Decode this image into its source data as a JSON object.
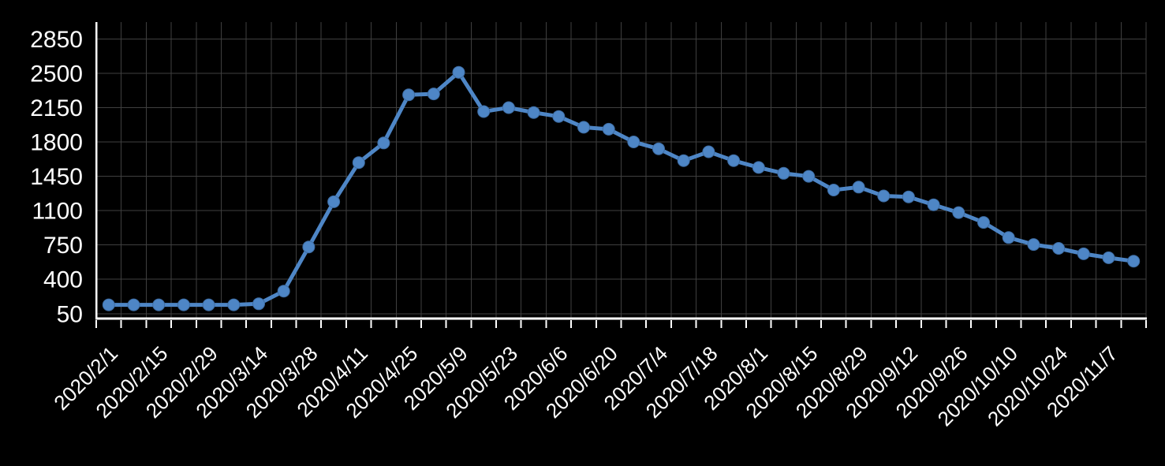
{
  "chart_data": {
    "type": "line",
    "title": "",
    "xlabel": "",
    "ylabel": "",
    "x": [
      "2020/2/1",
      "2020/2/8",
      "2020/2/15",
      "2020/2/22",
      "2020/2/29",
      "2020/3/7",
      "2020/3/14",
      "2020/3/21",
      "2020/3/28",
      "2020/4/4",
      "2020/4/11",
      "2020/4/18",
      "2020/4/25",
      "2020/5/2",
      "2020/5/9",
      "2020/5/16",
      "2020/5/23",
      "2020/5/30",
      "2020/6/6",
      "2020/6/13",
      "2020/6/20",
      "2020/6/27",
      "2020/7/4",
      "2020/7/11",
      "2020/7/18",
      "2020/7/25",
      "2020/8/1",
      "2020/8/8",
      "2020/8/15",
      "2020/8/22",
      "2020/8/29",
      "2020/9/5",
      "2020/9/12",
      "2020/9/19",
      "2020/9/26",
      "2020/10/3",
      "2020/10/10",
      "2020/10/17",
      "2020/10/24",
      "2020/10/31",
      "2020/11/7",
      "2020/11/14"
    ],
    "values": [
      140,
      140,
      140,
      140,
      140,
      140,
      150,
      280,
      730,
      1190,
      1590,
      1790,
      2280,
      2290,
      2510,
      2110,
      2150,
      2100,
      2060,
      1950,
      1930,
      1800,
      1730,
      1610,
      1700,
      1610,
      1540,
      1480,
      1450,
      1310,
      1340,
      1250,
      1240,
      1160,
      1080,
      980,
      825,
      755,
      715,
      660,
      620,
      585
    ],
    "x_label_step": 2,
    "x_tick_labels": [
      "2020/2/1",
      "2020/2/15",
      "2020/2/29",
      "2020/3/14",
      "2020/3/28",
      "2020/4/11",
      "2020/4/25",
      "2020/5/9",
      "2020/5/23",
      "2020/6/6",
      "2020/6/20",
      "2020/7/4",
      "2020/7/18",
      "2020/8/1",
      "2020/8/15",
      "2020/8/29",
      "2020/9/12",
      "2020/9/26",
      "2020/10/10",
      "2020/10/24",
      "2020/11/7"
    ],
    "yticks": [
      50,
      400,
      750,
      1100,
      1450,
      1800,
      2150,
      2500,
      2850
    ],
    "ylim": [
      0,
      3025
    ],
    "grid": true,
    "legend_position": "none"
  },
  "colors": {
    "background": "#000000",
    "gridline": "#3f3f3f",
    "axis": "#ffffff",
    "tick": "#ffffff",
    "label_text": "#ffffff",
    "line": "#4e86c6",
    "marker": "#4e86c6",
    "marker_edge": "#3d6ca3"
  }
}
